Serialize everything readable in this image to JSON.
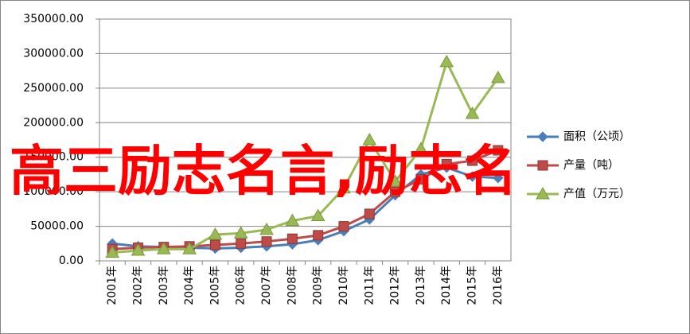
{
  "chart_data": {
    "type": "line",
    "annotation": "高三励志名言,励志名",
    "categories": [
      "2001年",
      "2002年",
      "2003年",
      "2004年",
      "2005年",
      "2006年",
      "2007年",
      "2008年",
      "2009年",
      "2010年",
      "2011年",
      "2012年",
      "2013年",
      "2014年",
      "2015年",
      "2016年"
    ],
    "series": [
      {
        "name": "面积（公顷）",
        "color": "#4a7ebb",
        "marker": "diamond",
        "values": [
          25000,
          21000,
          20000,
          19000,
          18000,
          19000,
          21000,
          24000,
          30000,
          43000,
          60000,
          95000,
          125000,
          135000,
          122000,
          120000
        ]
      },
      {
        "name": "产量（吨）",
        "color": "#be4b48",
        "marker": "square",
        "values": [
          17000,
          19000,
          20000,
          21000,
          23000,
          25000,
          28000,
          32000,
          37000,
          50000,
          68000,
          100000,
          118000,
          140000,
          145000,
          160000
        ]
      },
      {
        "name": "产值（万元）",
        "color": "#98b954",
        "marker": "triangle",
        "values": [
          12000,
          15000,
          17000,
          17000,
          38000,
          40000,
          45000,
          58000,
          65000,
          105000,
          175000,
          115000,
          162000,
          288000,
          213000,
          265000
        ]
      }
    ],
    "ylim": [
      0,
      350000
    ],
    "yticks": [
      {
        "value": 0,
        "label": "0.00"
      },
      {
        "value": 50000,
        "label": "50000.00"
      },
      {
        "value": 100000,
        "label": "100000.00"
      },
      {
        "value": 150000,
        "label": "150000.00"
      },
      {
        "value": 200000,
        "label": "200000.00"
      },
      {
        "value": 250000,
        "label": "250000.00"
      },
      {
        "value": 300000,
        "label": "300000.00"
      },
      {
        "value": 350000,
        "label": "350000.00"
      }
    ],
    "grid": true,
    "legend": "right"
  }
}
